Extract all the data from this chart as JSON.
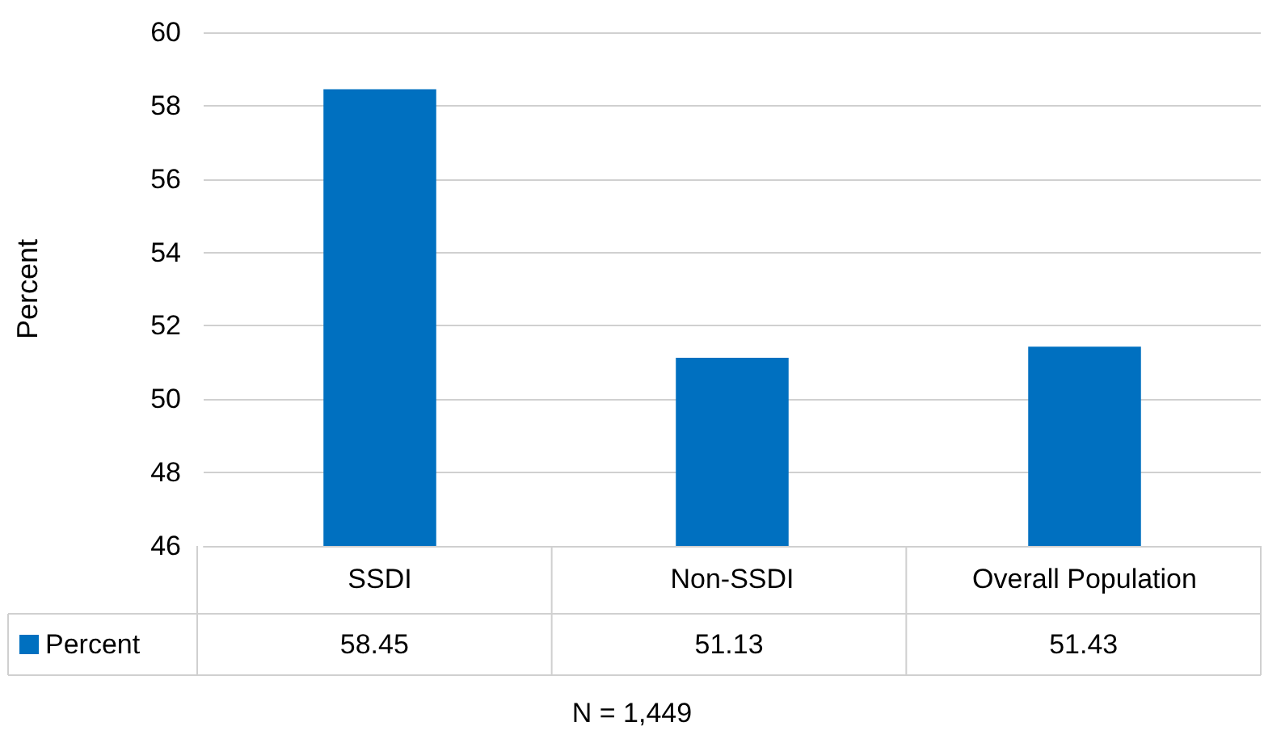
{
  "chart_data": {
    "type": "bar",
    "ylabel": "Percent",
    "categories": [
      "SSDI",
      "Non-SSDI",
      "Overall Population"
    ],
    "series": [
      {
        "name": "Percent",
        "color": "#0070c0",
        "values": [
          58.45,
          51.13,
          51.43
        ]
      }
    ],
    "ylim": [
      46,
      60
    ],
    "yticks": [
      46,
      48,
      50,
      52,
      54,
      56,
      58,
      60
    ],
    "grid": "y",
    "legend": "bottom left",
    "data_labels": true,
    "annotations": [
      "N = 1,449"
    ]
  }
}
